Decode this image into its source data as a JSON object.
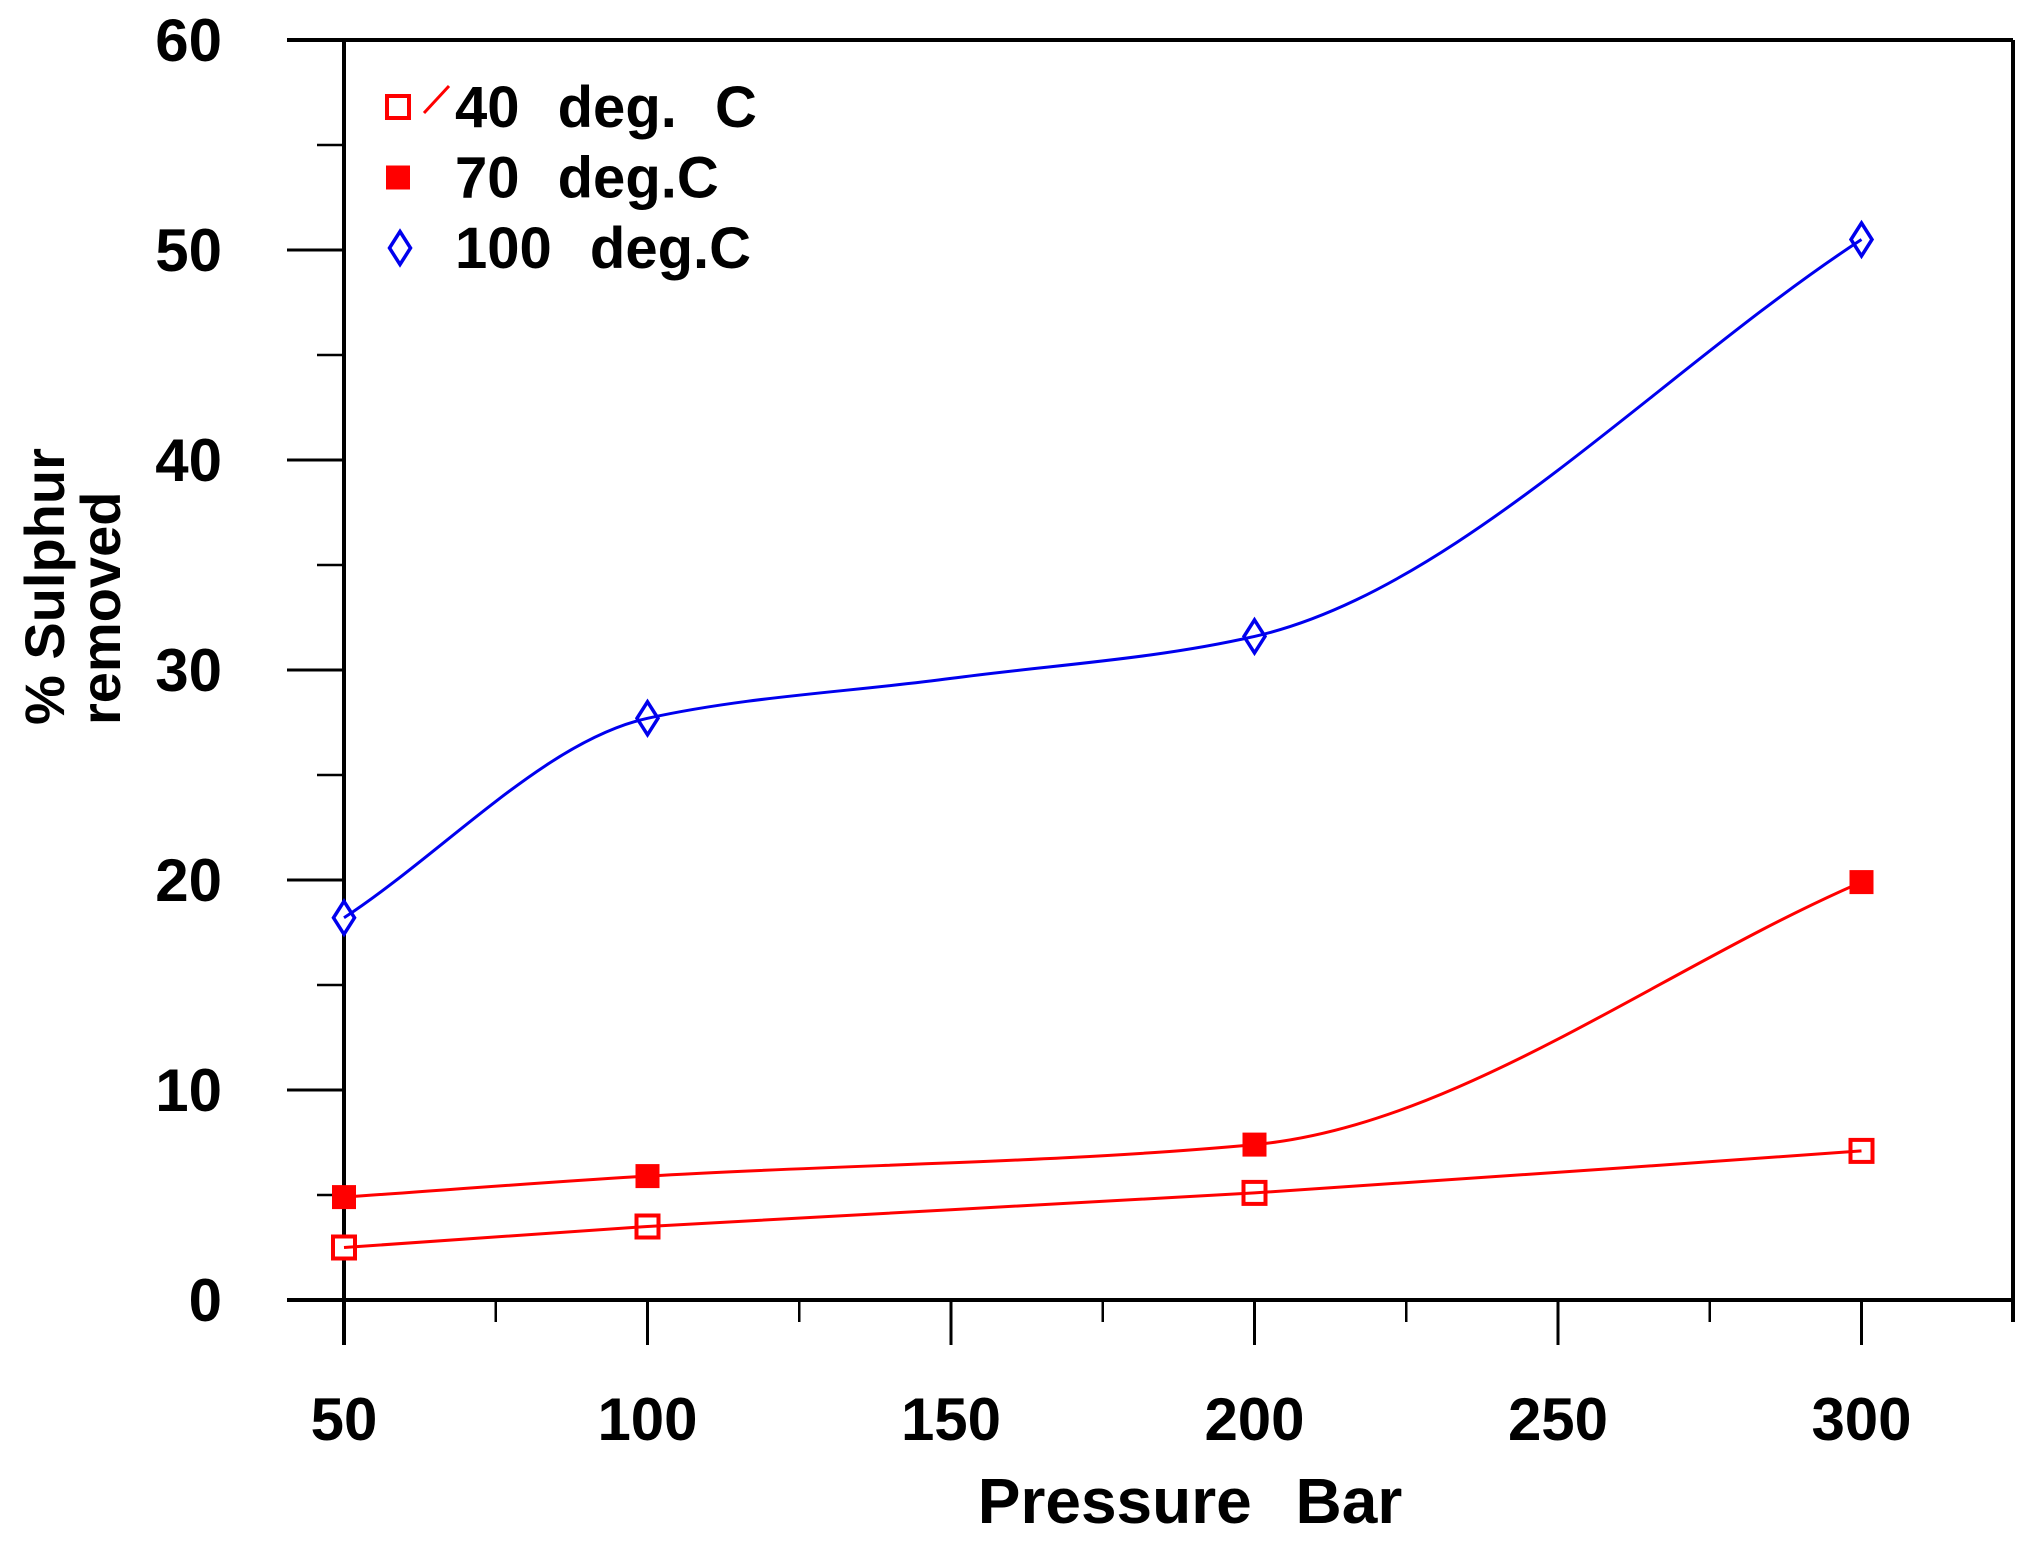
{
  "chart_data": {
    "type": "line",
    "title": "",
    "xlabel": "Pressure Bar",
    "ylabel": "% Sulphur removed",
    "ylabel_lines": [
      "% Sulphur",
      "removed"
    ],
    "x_ticks": [
      50,
      100,
      150,
      200,
      250,
      300
    ],
    "y_ticks": [
      0,
      10,
      20,
      30,
      40,
      50,
      60
    ],
    "x_minor_ticks": [
      75,
      125,
      175,
      225,
      275,
      325
    ],
    "y_minor_ticks": [
      5,
      15,
      25,
      35,
      45,
      55
    ],
    "xlim": [
      50,
      325
    ],
    "ylim": [
      0,
      60
    ],
    "grid": false,
    "legend_position": "top-left-inside",
    "series": [
      {
        "name": "40 deg. C",
        "color": "#ff0000",
        "marker": "open-square",
        "x": [
          50,
          100,
          200,
          300
        ],
        "y": [
          2.5,
          3.5,
          5.1,
          7.1
        ]
      },
      {
        "name": "70 deg.C",
        "color": "#ff0000",
        "marker": "filled-square",
        "x": [
          50,
          100,
          200,
          300
        ],
        "y": [
          4.9,
          5.9,
          7.4,
          19.9
        ]
      },
      {
        "name": "100 deg.C",
        "color": "#0000ee",
        "marker": "open-diamond",
        "x": [
          50,
          100,
          200,
          300
        ],
        "y": [
          18.2,
          27.7,
          31.6,
          50.5
        ],
        "curve_passes_through": [
          {
            "x": 150,
            "y": 29.6
          }
        ]
      }
    ],
    "colors": {
      "axis": "#000000",
      "red_series": "#ff0000",
      "blue_series": "#0000ee",
      "background": "#ffffff"
    }
  }
}
